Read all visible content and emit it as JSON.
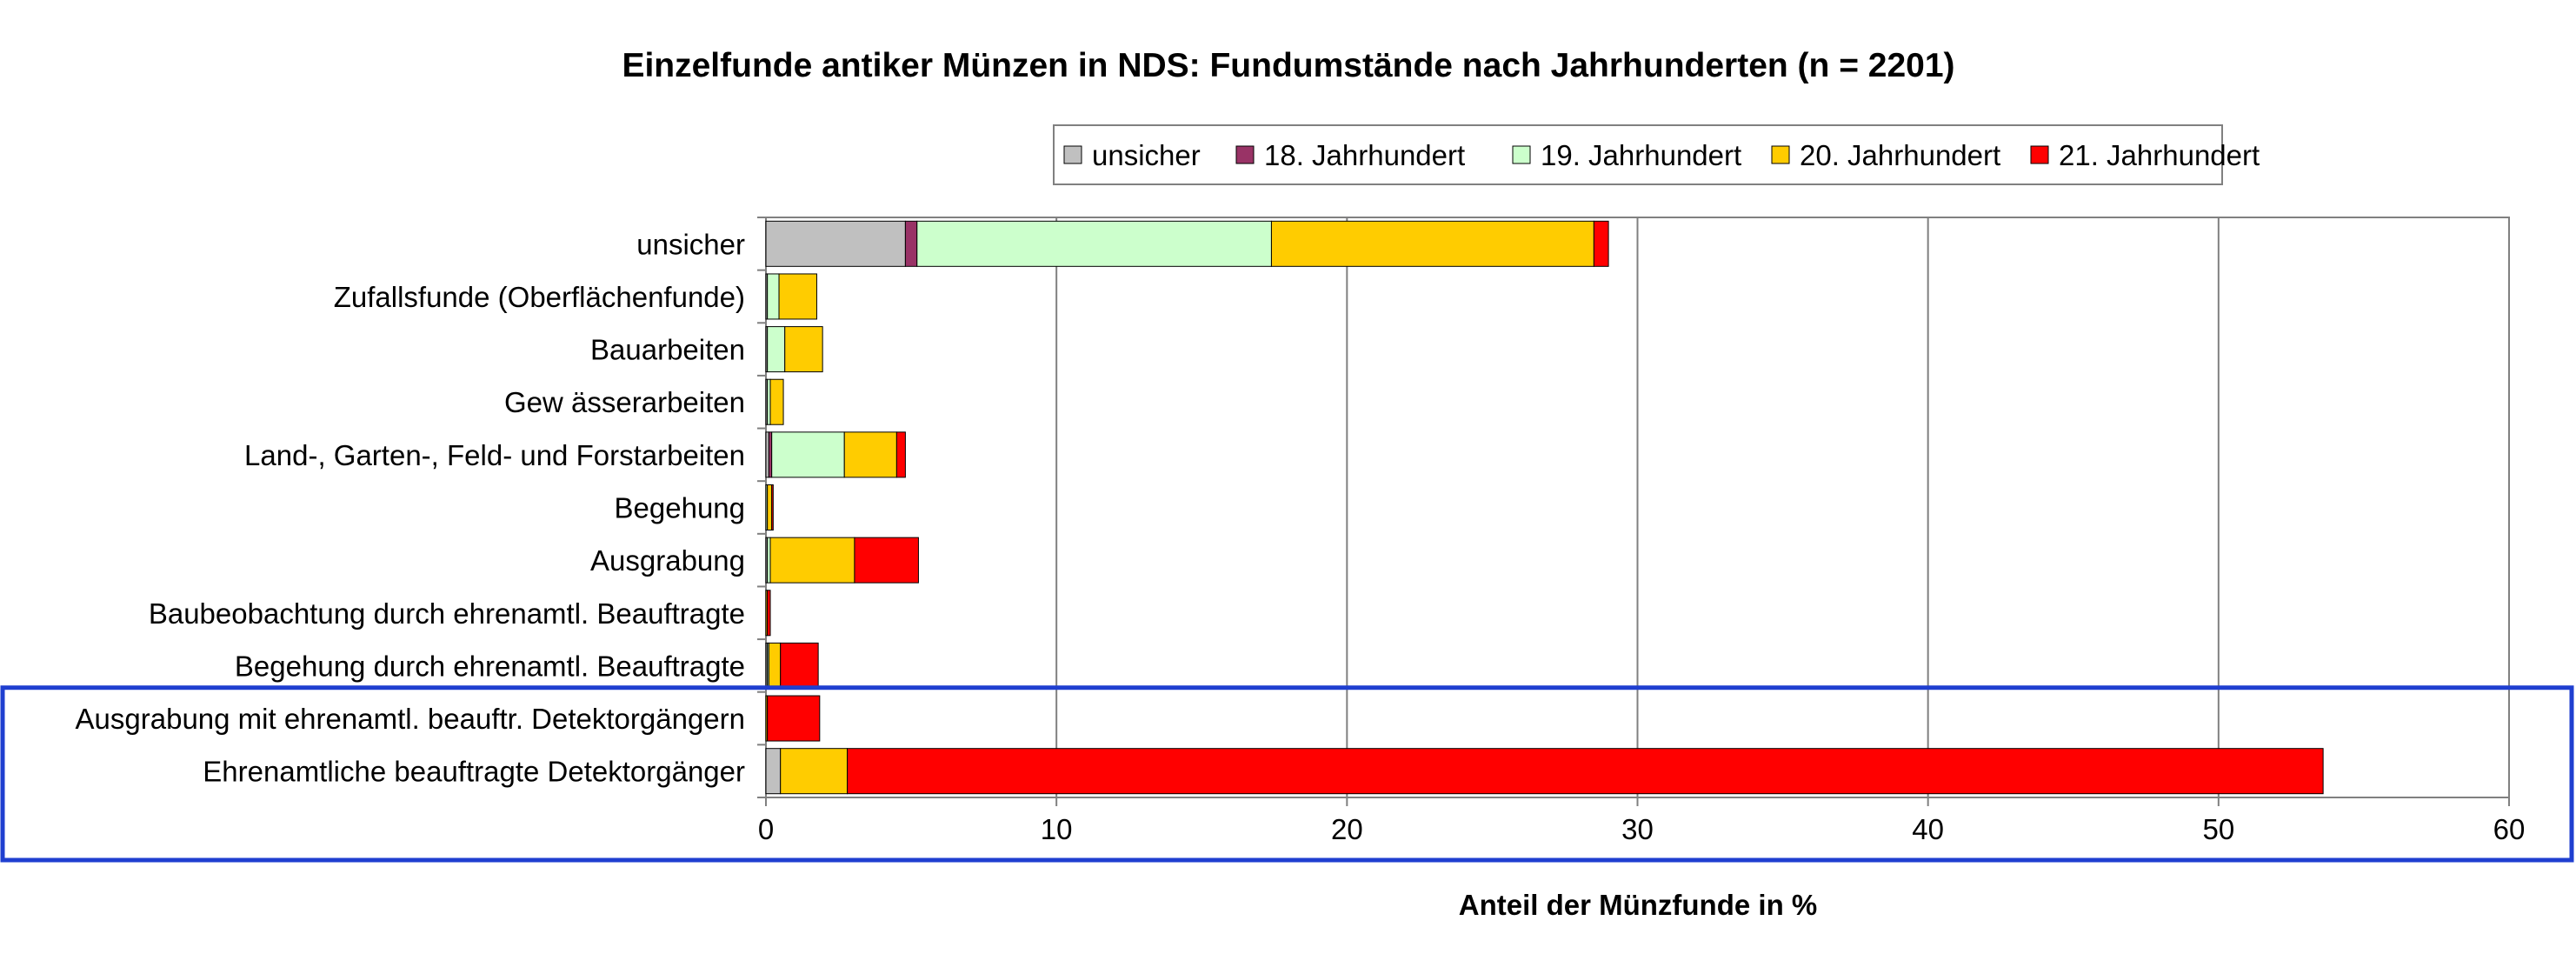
{
  "chart_data": {
    "type": "bar",
    "orientation": "horizontal",
    "stacked": true,
    "title": "Einzelfunde antiker Münzen in NDS: Fundumstände nach Jahrhunderten (n = 2201)",
    "xlabel": "Anteil der Münzfunde in %",
    "ylabel": "",
    "xlim": [
      0,
      60
    ],
    "xticks": [
      "0",
      "10",
      "20",
      "30",
      "40",
      "50",
      "60"
    ],
    "grid": true,
    "legend_position": "top-right",
    "categories": [
      "unsicher",
      "Zufallsfunde (Oberflächenfunde)",
      "Bauarbeiten",
      "Gew ässerarbeiten",
      "Land-, Garten-, Feld- und Forstarbeiten",
      "Begehung",
      "Ausgrabung",
      "Baubeobachtung durch ehrenamtl. Beauftragte",
      "Begehung durch ehrenamtl. Beauftragte",
      "Ausgrabung mit ehrenamtl. beauftr. Detektorgängern",
      "Ehrenamtliche beauftragte Detektorgänger"
    ],
    "series": [
      {
        "name": "unsicher",
        "color": "#C0C0C0",
        "values": [
          4.8,
          0.05,
          0.05,
          0.05,
          0.1,
          0,
          0.05,
          0,
          0.05,
          0,
          0.5
        ]
      },
      {
        "name": "18. Jahrhundert",
        "color": "#993366",
        "values": [
          0.4,
          0,
          0,
          0,
          0.1,
          0,
          0,
          0,
          0,
          0,
          0
        ]
      },
      {
        "name": "19. Jahrhundert",
        "color": "#CCFFCC",
        "values": [
          12.2,
          0.4,
          0.6,
          0.1,
          2.5,
          0.05,
          0.1,
          0,
          0.05,
          0,
          0
        ]
      },
      {
        "name": "20. Jahrhundert",
        "color": "#FFCC00",
        "values": [
          11.1,
          1.3,
          1.3,
          0.45,
          1.8,
          0.15,
          2.9,
          0.05,
          0.4,
          0.05,
          2.3
        ]
      },
      {
        "name": "21. Jahrhundert",
        "color": "#FF0000",
        "values": [
          0.5,
          0,
          0,
          0,
          0.3,
          0.05,
          2.2,
          0.1,
          1.3,
          1.8,
          50.8
        ]
      }
    ],
    "highlight": {
      "color": "#1F3FD0",
      "categories": [
        "Ausgrabung mit ehrenamtl. beauftr. Detektorgängern",
        "Ehrenamtliche beauftragte Detektorgänger"
      ]
    }
  }
}
